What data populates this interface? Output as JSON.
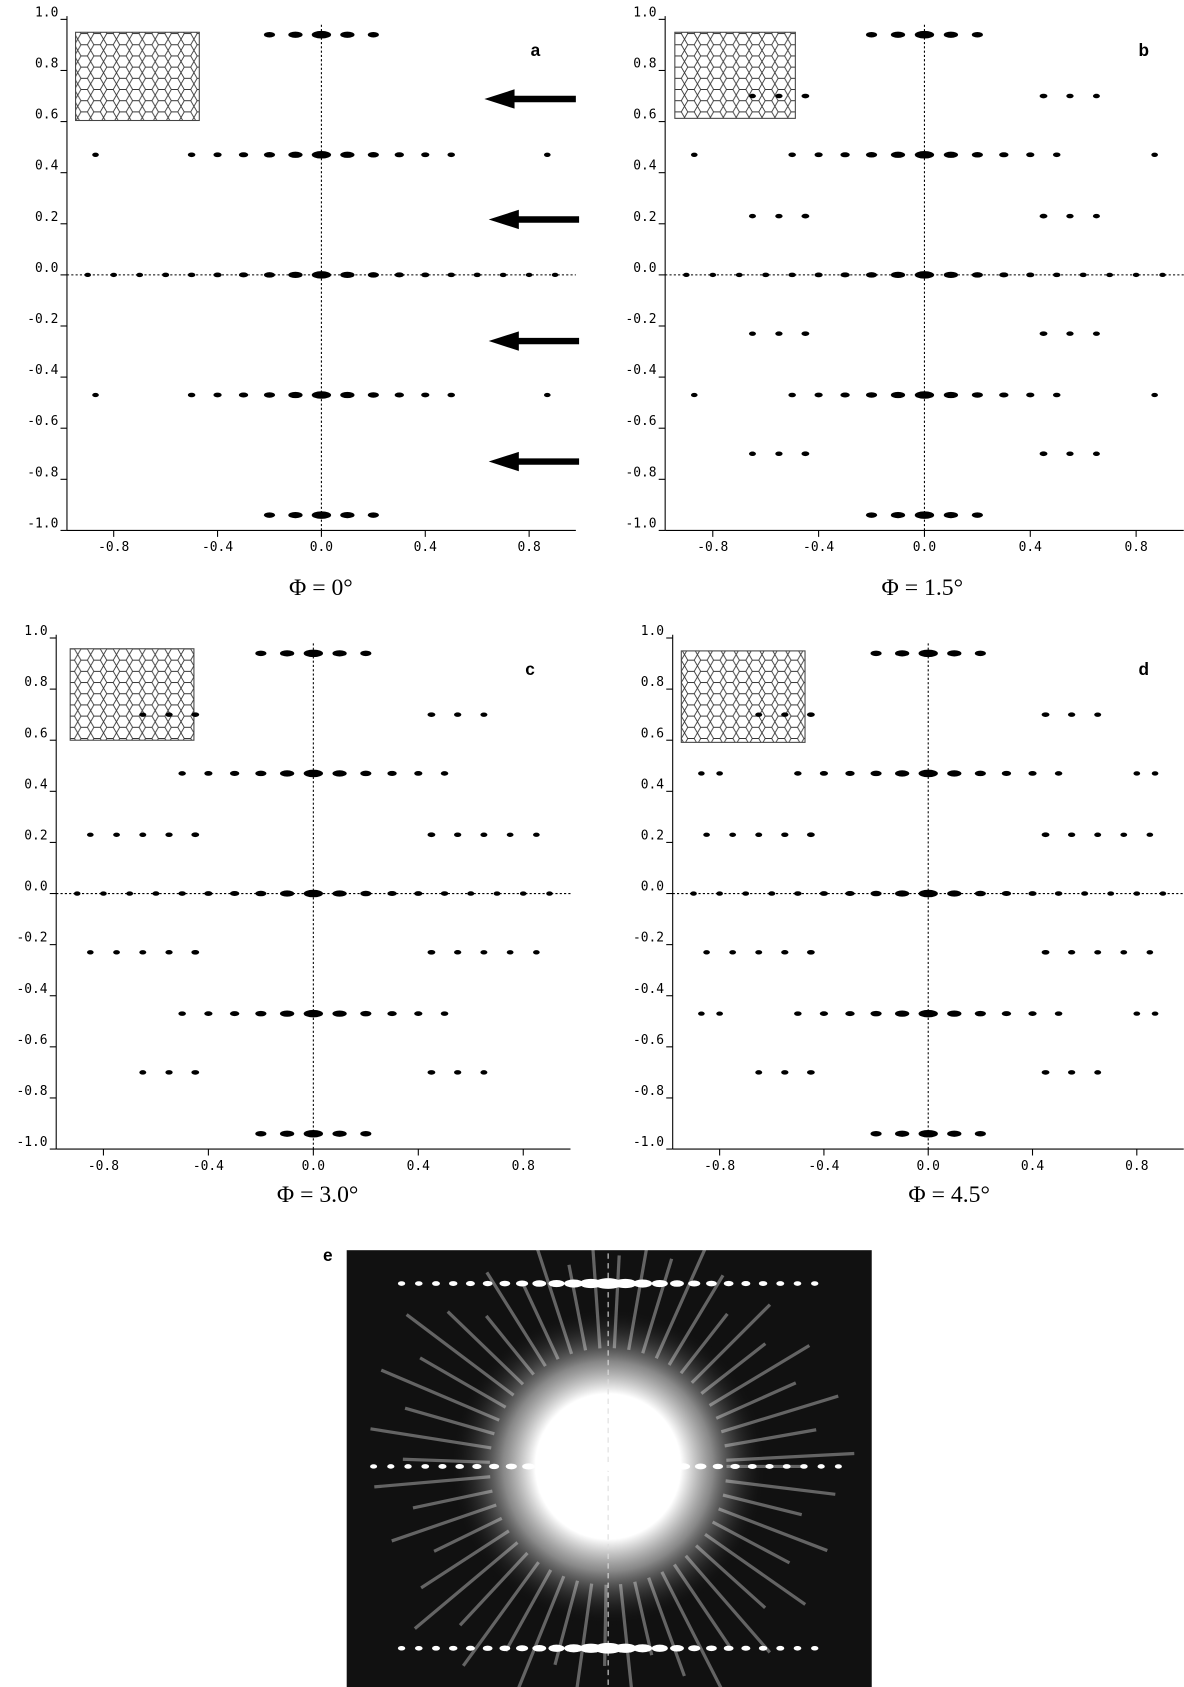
{
  "chart_data": [
    {
      "type": "scatter",
      "label": "a",
      "caption": "Φ = 0°",
      "color": "#000000",
      "xlim": [
        -0.98,
        0.98
      ],
      "ylim": [
        -1,
        1
      ],
      "xticks": [
        -0.8,
        -0.4,
        {
          "value": 0,
          "label": "0.0"
        },
        0.4,
        0.8
      ],
      "yticks": [
        {
          "value": -1,
          "label": "-1.0"
        },
        -0.8,
        -0.6,
        -0.4,
        -0.2,
        {
          "value": 0,
          "label": "0.0"
        },
        0.2,
        0.4,
        0.6,
        0.8,
        {
          "value": 1,
          "label": "1.0"
        }
      ],
      "series": [
        {
          "x": [
            -0.2,
            -0.1,
            0,
            0.1,
            0.2
          ],
          "values": [
            0.94,
            0.94,
            0.94,
            0.94,
            0.94
          ]
        },
        {
          "x": [
            -0.87,
            -0.5,
            -0.4,
            -0.3,
            -0.2,
            -0.1,
            0,
            0.1,
            0.2,
            0.3,
            0.4,
            0.5,
            0.87
          ],
          "values": [
            0.47,
            0.47,
            0.47,
            0.47,
            0.47,
            0.47,
            0.47,
            0.47,
            0.47,
            0.47,
            0.47,
            0.47,
            0.47
          ]
        },
        {
          "x": [
            -0.9,
            -0.8,
            -0.7,
            -0.6,
            -0.5,
            -0.4,
            -0.3,
            -0.2,
            -0.1,
            0,
            0.1,
            0.2,
            0.3,
            0.4,
            0.5,
            0.6,
            0.7,
            0.8,
            0.9
          ],
          "values": [
            0,
            0,
            0,
            0,
            0,
            0,
            0,
            0,
            0,
            0,
            0,
            0,
            0,
            0,
            0,
            0,
            0,
            0,
            0
          ]
        },
        {
          "x": [
            -0.87,
            -0.5,
            -0.4,
            -0.3,
            -0.2,
            -0.1,
            0,
            0.1,
            0.2,
            0.3,
            0.4,
            0.5,
            0.87
          ],
          "values": [
            -0.47,
            -0.47,
            -0.47,
            -0.47,
            -0.47,
            -0.47,
            -0.47,
            -0.47,
            -0.47,
            -0.47,
            -0.47,
            -0.47,
            -0.47
          ]
        },
        {
          "x": [
            -0.2,
            -0.1,
            0,
            0.1,
            0.2
          ],
          "values": [
            -0.94,
            -0.94,
            -0.94,
            -0.94,
            -0.94
          ]
        }
      ]
    },
    {
      "type": "scatter",
      "label": "b",
      "caption": "Φ = 1.5°",
      "color": "#000000",
      "xlim": [
        -0.98,
        0.98
      ],
      "ylim": [
        -1,
        1
      ],
      "xticks": [
        -0.8,
        -0.4,
        {
          "value": 0,
          "label": "0.0"
        },
        0.4,
        0.8
      ],
      "yticks": [
        {
          "value": -1,
          "label": "-1.0"
        },
        -0.8,
        -0.6,
        -0.4,
        -0.2,
        {
          "value": 0,
          "label": "0.0"
        },
        0.2,
        0.4,
        0.6,
        0.8,
        {
          "value": 1,
          "label": "1.0"
        }
      ],
      "series": [
        {
          "x": [
            -0.2,
            -0.1,
            0,
            0.1,
            0.2
          ],
          "values": [
            0.94,
            0.94,
            0.94,
            0.94,
            0.94
          ]
        },
        {
          "x": [
            -0.65,
            -0.55,
            -0.45,
            0.45,
            0.55,
            0.65
          ],
          "values": [
            0.7,
            0.7,
            0.7,
            0.7,
            0.7,
            0.7
          ]
        },
        {
          "x": [
            -0.87,
            -0.5,
            -0.4,
            -0.3,
            -0.2,
            -0.1,
            0,
            0.1,
            0.2,
            0.3,
            0.4,
            0.5,
            0.87
          ],
          "values": [
            0.47,
            0.47,
            0.47,
            0.47,
            0.47,
            0.47,
            0.47,
            0.47,
            0.47,
            0.47,
            0.47,
            0.47,
            0.47
          ]
        },
        {
          "x": [
            -0.65,
            -0.55,
            -0.45,
            0.45,
            0.55,
            0.65
          ],
          "values": [
            0.23,
            0.23,
            0.23,
            0.23,
            0.23,
            0.23
          ]
        },
        {
          "x": [
            -0.9,
            -0.8,
            -0.7,
            -0.6,
            -0.5,
            -0.4,
            -0.3,
            -0.2,
            -0.1,
            0,
            0.1,
            0.2,
            0.3,
            0.4,
            0.5,
            0.6,
            0.7,
            0.8,
            0.9
          ],
          "values": [
            0,
            0,
            0,
            0,
            0,
            0,
            0,
            0,
            0,
            0,
            0,
            0,
            0,
            0,
            0,
            0,
            0,
            0,
            0
          ]
        },
        {
          "x": [
            -0.65,
            -0.55,
            -0.45,
            0.45,
            0.55,
            0.65
          ],
          "values": [
            -0.23,
            -0.23,
            -0.23,
            -0.23,
            -0.23,
            -0.23
          ]
        },
        {
          "x": [
            -0.87,
            -0.5,
            -0.4,
            -0.3,
            -0.2,
            -0.1,
            0,
            0.1,
            0.2,
            0.3,
            0.4,
            0.5,
            0.87
          ],
          "values": [
            -0.47,
            -0.47,
            -0.47,
            -0.47,
            -0.47,
            -0.47,
            -0.47,
            -0.47,
            -0.47,
            -0.47,
            -0.47,
            -0.47,
            -0.47
          ]
        },
        {
          "x": [
            -0.65,
            -0.55,
            -0.45,
            0.45,
            0.55,
            0.65
          ],
          "values": [
            -0.7,
            -0.7,
            -0.7,
            -0.7,
            -0.7,
            -0.7
          ]
        },
        {
          "x": [
            -0.2,
            -0.1,
            0,
            0.1,
            0.2
          ],
          "values": [
            -0.94,
            -0.94,
            -0.94,
            -0.94,
            -0.94
          ]
        }
      ]
    },
    {
      "type": "scatter",
      "label": "c",
      "caption": "Φ = 3.0°",
      "color": "#000000",
      "xlim": [
        -0.98,
        0.98
      ],
      "ylim": [
        -1,
        1
      ],
      "xticks": [
        -0.8,
        -0.4,
        {
          "value": 0,
          "label": "0.0"
        },
        0.4,
        0.8
      ],
      "yticks": [
        {
          "value": -1,
          "label": "-1.0"
        },
        -0.8,
        -0.6,
        -0.4,
        -0.2,
        {
          "value": 0,
          "label": "0.0"
        },
        0.2,
        0.4,
        0.6,
        0.8,
        {
          "value": 1,
          "label": "1.0"
        }
      ],
      "series": [
        {
          "x": [
            -0.2,
            -0.1,
            0,
            0.1,
            0.2
          ],
          "values": [
            0.94,
            0.94,
            0.94,
            0.94,
            0.94
          ]
        },
        {
          "x": [
            -0.65,
            -0.55,
            -0.45,
            0.45,
            0.55,
            0.65
          ],
          "values": [
            0.7,
            0.7,
            0.7,
            0.7,
            0.7,
            0.7
          ]
        },
        {
          "x": [
            -0.5,
            -0.4,
            -0.3,
            -0.2,
            -0.1,
            0,
            0.1,
            0.2,
            0.3,
            0.4,
            0.5
          ],
          "values": [
            0.47,
            0.47,
            0.47,
            0.47,
            0.47,
            0.47,
            0.47,
            0.47,
            0.47,
            0.47,
            0.47
          ]
        },
        {
          "x": [
            -0.85,
            -0.75,
            -0.65,
            -0.55,
            -0.45,
            0.45,
            0.55,
            0.65,
            0.75,
            0.85
          ],
          "values": [
            0.23,
            0.23,
            0.23,
            0.23,
            0.23,
            0.23,
            0.23,
            0.23,
            0.23,
            0.23
          ]
        },
        {
          "x": [
            -0.9,
            -0.8,
            -0.7,
            -0.6,
            -0.5,
            -0.4,
            -0.3,
            -0.2,
            -0.1,
            0,
            0.1,
            0.2,
            0.3,
            0.4,
            0.5,
            0.6,
            0.7,
            0.8,
            0.9
          ],
          "values": [
            0,
            0,
            0,
            0,
            0,
            0,
            0,
            0,
            0,
            0,
            0,
            0,
            0,
            0,
            0,
            0,
            0,
            0,
            0
          ]
        },
        {
          "x": [
            -0.85,
            -0.75,
            -0.65,
            -0.55,
            -0.45,
            0.45,
            0.55,
            0.65,
            0.75,
            0.85
          ],
          "values": [
            -0.23,
            -0.23,
            -0.23,
            -0.23,
            -0.23,
            -0.23,
            -0.23,
            -0.23,
            -0.23,
            -0.23
          ]
        },
        {
          "x": [
            -0.5,
            -0.4,
            -0.3,
            -0.2,
            -0.1,
            0,
            0.1,
            0.2,
            0.3,
            0.4,
            0.5
          ],
          "values": [
            -0.47,
            -0.47,
            -0.47,
            -0.47,
            -0.47,
            -0.47,
            -0.47,
            -0.47,
            -0.47,
            -0.47,
            -0.47
          ]
        },
        {
          "x": [
            -0.65,
            -0.55,
            -0.45,
            0.45,
            0.55,
            0.65
          ],
          "values": [
            -0.7,
            -0.7,
            -0.7,
            -0.7,
            -0.7,
            -0.7
          ]
        },
        {
          "x": [
            -0.2,
            -0.1,
            0,
            0.1,
            0.2
          ],
          "values": [
            -0.94,
            -0.94,
            -0.94,
            -0.94,
            -0.94
          ]
        }
      ]
    },
    {
      "type": "scatter",
      "label": "d",
      "caption": "Φ = 4.5°",
      "color": "#000000",
      "xlim": [
        -0.98,
        0.98
      ],
      "ylim": [
        -1,
        1
      ],
      "xticks": [
        -0.8,
        -0.4,
        {
          "value": 0,
          "label": "0.0"
        },
        0.4,
        0.8
      ],
      "yticks": [
        {
          "value": -1,
          "label": "-1.0"
        },
        -0.8,
        -0.6,
        -0.4,
        -0.2,
        {
          "value": 0,
          "label": "0.0"
        },
        0.2,
        0.4,
        0.6,
        0.8,
        {
          "value": 1,
          "label": "1.0"
        }
      ],
      "series": [
        {
          "x": [
            -0.2,
            -0.1,
            0,
            0.1,
            0.2
          ],
          "values": [
            0.94,
            0.94,
            0.94,
            0.94,
            0.94
          ]
        },
        {
          "x": [
            -0.65,
            -0.55,
            -0.45,
            0.45,
            0.55,
            0.65
          ],
          "values": [
            0.7,
            0.7,
            0.7,
            0.7,
            0.7,
            0.7
          ]
        },
        {
          "x": [
            -0.87,
            -0.8,
            -0.5,
            -0.4,
            -0.3,
            -0.2,
            -0.1,
            0,
            0.1,
            0.2,
            0.3,
            0.4,
            0.5,
            0.8,
            0.87
          ],
          "values": [
            0.47,
            0.47,
            0.47,
            0.47,
            0.47,
            0.47,
            0.47,
            0.47,
            0.47,
            0.47,
            0.47,
            0.47,
            0.47,
            0.47,
            0.47
          ]
        },
        {
          "x": [
            -0.85,
            -0.75,
            -0.65,
            -0.55,
            -0.45,
            0.45,
            0.55,
            0.65,
            0.75,
            0.85
          ],
          "values": [
            0.23,
            0.23,
            0.23,
            0.23,
            0.23,
            0.23,
            0.23,
            0.23,
            0.23,
            0.23
          ]
        },
        {
          "x": [
            -0.9,
            -0.8,
            -0.7,
            -0.6,
            -0.5,
            -0.4,
            -0.3,
            -0.2,
            -0.1,
            0,
            0.1,
            0.2,
            0.3,
            0.4,
            0.5,
            0.6,
            0.7,
            0.8,
            0.9
          ],
          "values": [
            0,
            0,
            0,
            0,
            0,
            0,
            0,
            0,
            0,
            0,
            0,
            0,
            0,
            0,
            0,
            0,
            0,
            0,
            0
          ]
        },
        {
          "x": [
            -0.85,
            -0.75,
            -0.65,
            -0.55,
            -0.45,
            0.45,
            0.55,
            0.65,
            0.75,
            0.85
          ],
          "values": [
            -0.23,
            -0.23,
            -0.23,
            -0.23,
            -0.23,
            -0.23,
            -0.23,
            -0.23,
            -0.23,
            -0.23
          ]
        },
        {
          "x": [
            -0.87,
            -0.8,
            -0.5,
            -0.4,
            -0.3,
            -0.2,
            -0.1,
            0,
            0.1,
            0.2,
            0.3,
            0.4,
            0.5,
            0.8,
            0.87
          ],
          "values": [
            -0.47,
            -0.47,
            -0.47,
            -0.47,
            -0.47,
            -0.47,
            -0.47,
            -0.47,
            -0.47,
            -0.47,
            -0.47,
            -0.47,
            -0.47,
            -0.47,
            -0.47
          ]
        },
        {
          "x": [
            -0.65,
            -0.55,
            -0.45,
            0.45,
            0.55,
            0.65
          ],
          "values": [
            -0.7,
            -0.7,
            -0.7,
            -0.7,
            -0.7,
            -0.7
          ]
        },
        {
          "x": [
            -0.2,
            -0.1,
            0,
            0.1,
            0.2
          ],
          "values": [
            -0.94,
            -0.94,
            -0.94,
            -0.94,
            -0.94
          ]
        }
      ]
    }
  ],
  "image_panel": {
    "label": "e"
  }
}
